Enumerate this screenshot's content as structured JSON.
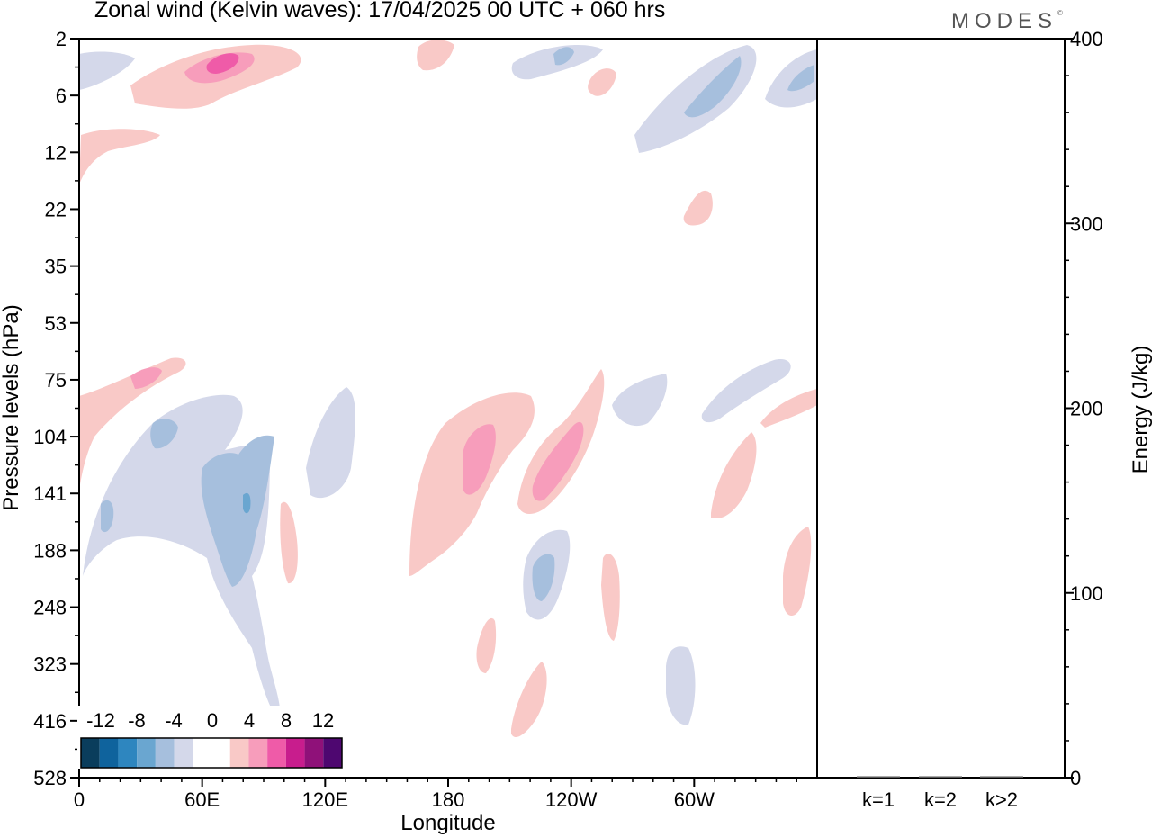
{
  "header": {
    "title": "Zonal wind (Kelvin waves):  17/04/2025  00 UTC  + 060 hrs",
    "brand": "MODES"
  },
  "colors": {
    "neg": [
      "#0a3d5c",
      "#0f639d",
      "#2e86bf",
      "#6aa6d0",
      "#a6bfdd",
      "#d4d8ea"
    ],
    "zero": "#ffffff",
    "pos": [
      "#f9c9c7",
      "#f79dbb",
      "#ef5ba8",
      "#c81d8d",
      "#8f1179",
      "#4e0770"
    ]
  },
  "chart_data": [
    {
      "type": "contour",
      "xlabel": "Longitude",
      "ylabel": "Pressure levels (hPa)",
      "x_ticks": [
        "0",
        "60E",
        "120E",
        "180",
        "120W",
        "60W"
      ],
      "y_ticks": [
        "2",
        "6",
        "12",
        "22",
        "35",
        "53",
        "75",
        "104",
        "141",
        "188",
        "248",
        "323",
        "416",
        "528"
      ],
      "colorbar": {
        "labels": [
          "-12",
          "-8",
          "-4",
          "0",
          "4",
          "8",
          "12"
        ],
        "levels": [
          -14,
          -12,
          -10,
          -8,
          -6,
          -4,
          -2,
          2,
          4,
          6,
          8,
          10,
          12
        ]
      }
    },
    {
      "type": "bar",
      "ylabel": "Energy (J/kg)",
      "categories": [
        "k=1",
        "k=2",
        "k>2"
      ],
      "values": [
        0.5,
        0.5,
        0.5
      ],
      "ylim": [
        0,
        400
      ],
      "y_ticks": [
        "0",
        "100",
        "200",
        "300",
        "400"
      ]
    }
  ]
}
